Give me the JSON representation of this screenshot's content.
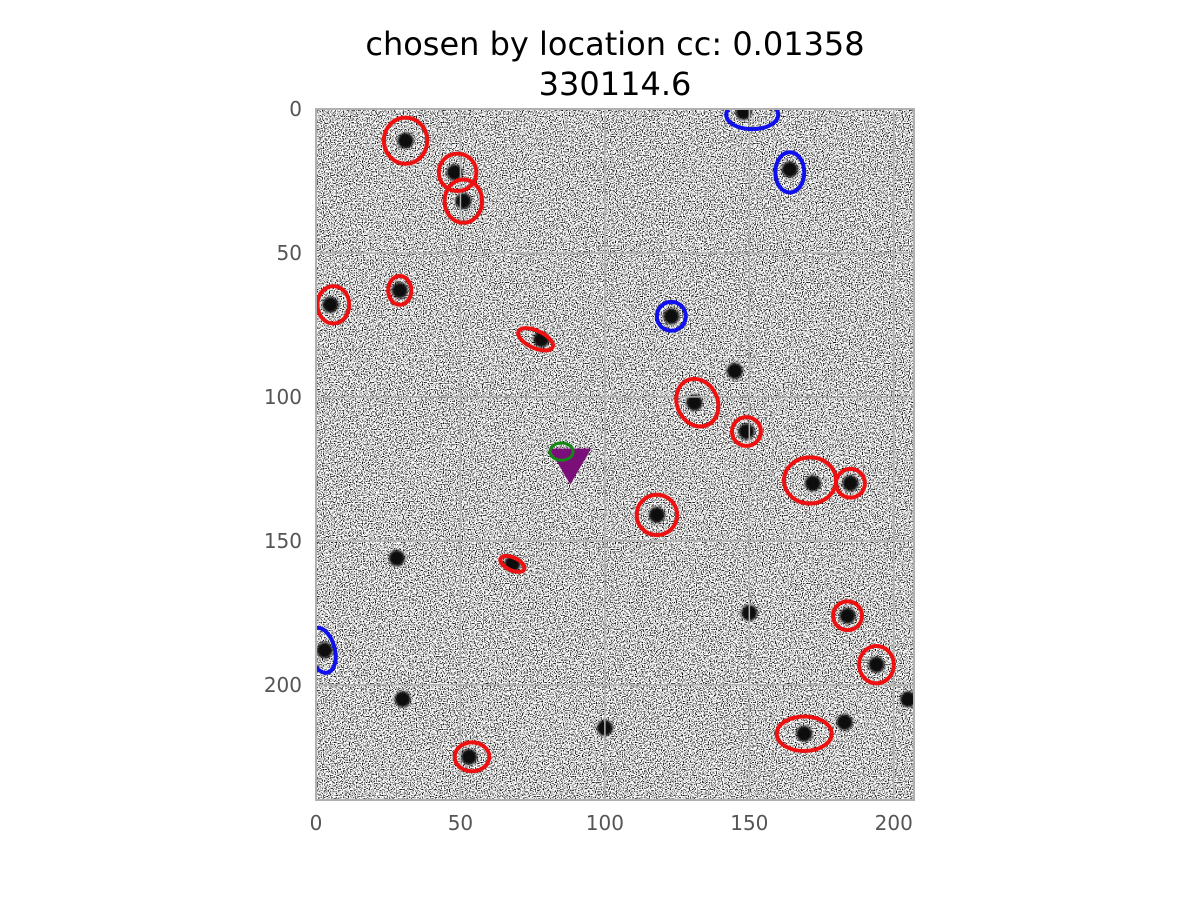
{
  "title": {
    "line1": "chosen by location cc: 0.01358",
    "line2": "330114.6"
  },
  "axes": {
    "xlim": [
      0,
      207
    ],
    "ylim": [
      240,
      0
    ],
    "x_ticks": [
      "0",
      "50",
      "100",
      "150",
      "200"
    ],
    "y_ticks": [
      "0",
      "50",
      "100",
      "150",
      "200"
    ],
    "grid": true
  },
  "colors": {
    "red_sources": "#ee1111",
    "blue_sources": "#1111ee",
    "target_marker": "#7a0f7a",
    "target_ellipse": "#118811",
    "grid": "#b0b0b0",
    "tick_text": "#555555"
  },
  "image": {
    "type": "grayscale noisy star field (inverted)",
    "dark_blobs": [
      [
        31,
        11
      ],
      [
        48,
        22
      ],
      [
        51,
        32
      ],
      [
        5,
        68
      ],
      [
        29,
        63
      ],
      [
        123,
        72
      ],
      [
        164,
        21
      ],
      [
        148,
        1
      ],
      [
        78,
        80
      ],
      [
        131,
        102
      ],
      [
        145,
        91
      ],
      [
        149,
        112
      ],
      [
        172,
        130
      ],
      [
        185,
        130
      ],
      [
        118,
        141
      ],
      [
        68,
        158
      ],
      [
        28,
        156
      ],
      [
        184,
        176
      ],
      [
        194,
        193
      ],
      [
        3,
        188
      ],
      [
        169,
        217
      ],
      [
        183,
        213
      ],
      [
        205,
        205
      ],
      [
        53,
        225
      ],
      [
        30,
        205
      ],
      [
        150,
        175
      ],
      [
        100,
        215
      ]
    ]
  },
  "annotations": {
    "red_ellipses": [
      {
        "x": 31,
        "y": 11,
        "rx": 7.5,
        "ry": 8
      },
      {
        "x": 49,
        "y": 22,
        "rx": 6.5,
        "ry": 6.5
      },
      {
        "x": 51,
        "y": 32,
        "rx": 6.5,
        "ry": 7.5
      },
      {
        "x": 6,
        "y": 68,
        "rx": 5.5,
        "ry": 6.5
      },
      {
        "x": 29,
        "y": 63,
        "rx": 4,
        "ry": 5
      },
      {
        "x": 76,
        "y": 80,
        "rx": 6.5,
        "ry": 3,
        "angle": 25
      },
      {
        "x": 132,
        "y": 102,
        "rx": 7,
        "ry": 8.5,
        "angle": -25
      },
      {
        "x": 149,
        "y": 112,
        "rx": 5,
        "ry": 5
      },
      {
        "x": 171,
        "y": 129,
        "rx": 9,
        "ry": 8
      },
      {
        "x": 185,
        "y": 130,
        "rx": 5,
        "ry": 5
      },
      {
        "x": 118,
        "y": 141,
        "rx": 7,
        "ry": 7
      },
      {
        "x": 68,
        "y": 158,
        "rx": 4.5,
        "ry": 2.2,
        "angle": 25
      },
      {
        "x": 184,
        "y": 176,
        "rx": 5,
        "ry": 5
      },
      {
        "x": 194,
        "y": 193,
        "rx": 6,
        "ry": 6.5
      },
      {
        "x": 169,
        "y": 217,
        "rx": 9.5,
        "ry": 6
      },
      {
        "x": 54,
        "y": 225,
        "rx": 6,
        "ry": 5
      }
    ],
    "blue_ellipses": [
      {
        "x": 151,
        "y": 2,
        "rx": 9,
        "ry": 5
      },
      {
        "x": 164,
        "y": 22,
        "rx": 5,
        "ry": 7
      },
      {
        "x": 123,
        "y": 72,
        "rx": 5,
        "ry": 5
      },
      {
        "x": 2,
        "y": 188,
        "rx": 4.5,
        "ry": 8,
        "angle": -15
      }
    ],
    "target": {
      "x": 88,
      "y": 120
    },
    "target_ellipse": {
      "x": 85,
      "y": 119,
      "rx": 4,
      "ry": 3
    }
  }
}
